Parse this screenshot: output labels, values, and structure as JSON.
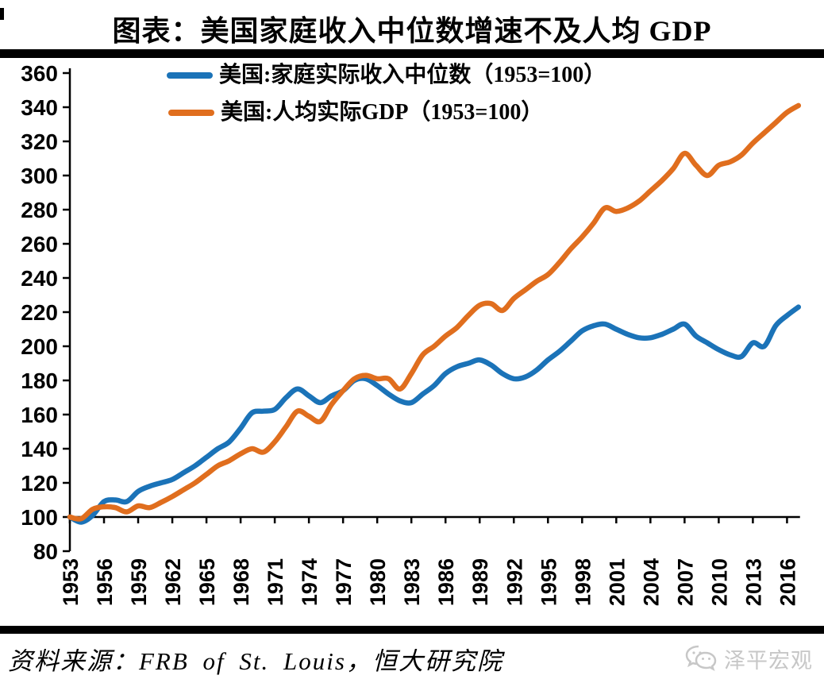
{
  "title": "图表：美国家庭收入中位数增速不及人均 GDP",
  "source": "资料来源：FRB of St. Louis，恒大研究院",
  "watermark": "泽平宏观",
  "colors": {
    "income_line": "#1b73b8",
    "gdp_line": "#e06e1e",
    "axis": "#000000",
    "watermark_gray": "#c7c7c7"
  },
  "legend": [
    {
      "label": "美国:家庭实际收入中位数（1953=100）",
      "color": "#1b73b8"
    },
    {
      "label": "美国:人均实际GDP（1953=100）",
      "color": "#e06e1e"
    }
  ],
  "chart_data": {
    "type": "line",
    "title": "图表：美国家庭收入中位数增速不及人均 GDP",
    "legend_position": "top-left",
    "grid": false,
    "baseline_value": 100,
    "ylim": [
      80,
      360
    ],
    "y_tick_step": 20,
    "x_tick_years": [
      1953,
      1956,
      1959,
      1962,
      1965,
      1968,
      1971,
      1974,
      1977,
      1980,
      1983,
      1986,
      1989,
      1992,
      1995,
      1998,
      2001,
      2004,
      2007,
      2010,
      2013,
      2016
    ],
    "x": [
      1953,
      1954,
      1955,
      1956,
      1957,
      1958,
      1959,
      1960,
      1961,
      1962,
      1963,
      1964,
      1965,
      1966,
      1967,
      1968,
      1969,
      1970,
      1971,
      1972,
      1973,
      1974,
      1975,
      1976,
      1977,
      1978,
      1979,
      1980,
      1981,
      1982,
      1983,
      1984,
      1985,
      1986,
      1987,
      1988,
      1989,
      1990,
      1991,
      1992,
      1993,
      1994,
      1995,
      1996,
      1997,
      1998,
      1999,
      2000,
      2001,
      2002,
      2003,
      2004,
      2005,
      2006,
      2007,
      2008,
      2009,
      2010,
      2011,
      2012,
      2013,
      2014,
      2015,
      2016,
      2017
    ],
    "series": [
      {
        "name": "美国:家庭实际收入中位数（1953=100）",
        "color": "#1b73b8",
        "values": [
          100,
          97,
          101,
          109,
          110,
          109,
          115,
          118,
          120,
          122,
          126,
          130,
          135,
          140,
          144,
          152,
          161,
          162,
          163,
          170,
          175,
          171,
          167,
          171,
          174,
          180,
          181,
          177,
          172,
          168,
          167,
          172,
          177,
          184,
          188,
          190,
          192,
          189,
          184,
          181,
          182,
          186,
          192,
          197,
          203,
          209,
          212,
          213,
          210,
          207,
          205,
          205,
          207,
          210,
          213,
          206,
          202,
          198,
          195,
          194,
          202,
          200,
          212,
          218,
          223
        ]
      },
      {
        "name": "美国:人均实际GDP（1953=100）",
        "color": "#e06e1e",
        "values": [
          100,
          99,
          104.5,
          106,
          105.5,
          103,
          106.5,
          105.5,
          108.5,
          112,
          116,
          120,
          125,
          130,
          133,
          137,
          140,
          138,
          144,
          153,
          162,
          159,
          156,
          166,
          174,
          181,
          183,
          181,
          181,
          175,
          184,
          195,
          200,
          206,
          211,
          218,
          224,
          225,
          221,
          228,
          233,
          238,
          242,
          249,
          257,
          264,
          272,
          281,
          279,
          281,
          285,
          291,
          297,
          304,
          313,
          306,
          300,
          306,
          308,
          312,
          319,
          325,
          331,
          337,
          341
        ]
      }
    ]
  }
}
